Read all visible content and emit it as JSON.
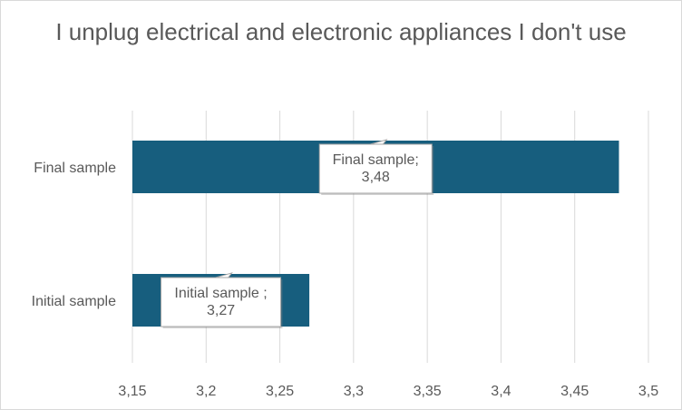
{
  "chart_data": {
    "type": "bar",
    "orientation": "horizontal",
    "title": "I unplug electrical and electronic appliances I don't use",
    "categories": [
      "Final sample",
      "Initial sample"
    ],
    "values": [
      3.48,
      3.27
    ],
    "data_labels": [
      "Final sample;\n3,48",
      "Initial sample ;\n3,27"
    ],
    "xlim": [
      3.15,
      3.5
    ],
    "x_ticks": [
      3.15,
      3.2,
      3.25,
      3.3,
      3.35,
      3.4,
      3.45,
      3.5
    ],
    "x_tick_labels": [
      "3,15",
      "3,2",
      "3,25",
      "3,3",
      "3,35",
      "3,4",
      "3,45",
      "3,5"
    ],
    "grid": "vertical",
    "legend": "none",
    "colors": {
      "bar": "#175e7e",
      "grid": "#d9d9d9",
      "text": "#595959",
      "label_border": "#a6a6a6"
    }
  }
}
